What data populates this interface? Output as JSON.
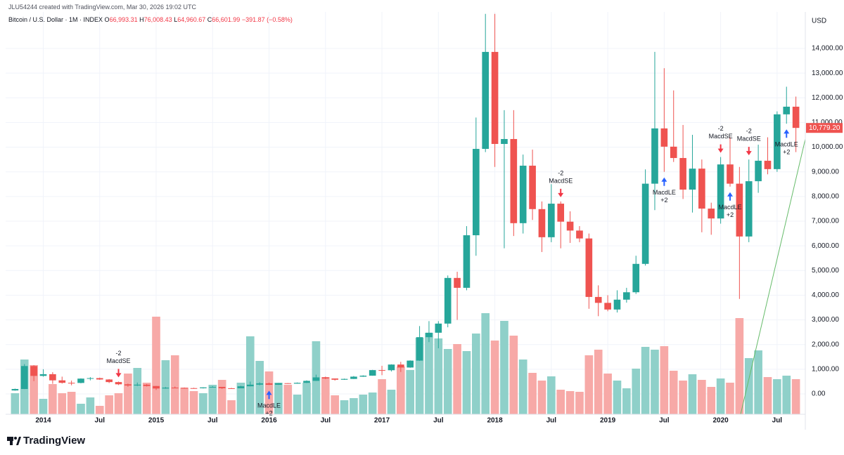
{
  "header": {
    "credit": "JLU54244 created with TradingView.com, Mar 30, 2026 19:02 UTC",
    "symbol": "Bitcoin / U.S. Dollar · 1M · INDEX",
    "ohlc": [
      {
        "label": "O",
        "value": "66,993.31"
      },
      {
        "label": "H",
        "value": "76,008.43"
      },
      {
        "label": "L",
        "value": "64,960.67"
      },
      {
        "label": "C",
        "value": "66,601.99"
      }
    ],
    "change": "−391.87 (−0.58%)",
    "logo": "TradingView"
  },
  "chart_data": {
    "type": "candlestick",
    "currency": "USD",
    "dates": [
      "2013-10",
      "2013-11",
      "2013-12",
      "2014-01",
      "2014-02",
      "2014-03",
      "2014-04",
      "2014-05",
      "2014-06",
      "2014-07",
      "2014-08",
      "2014-09",
      "2014-10",
      "2014-11",
      "2014-12",
      "2015-01",
      "2015-02",
      "2015-03",
      "2015-04",
      "2015-05",
      "2015-06",
      "2015-07",
      "2015-08",
      "2015-09",
      "2015-10",
      "2015-11",
      "2015-12",
      "2016-01",
      "2016-02",
      "2016-03",
      "2016-04",
      "2016-05",
      "2016-06",
      "2016-07",
      "2016-08",
      "2016-09",
      "2016-10",
      "2016-11",
      "2016-12",
      "2017-01",
      "2017-02",
      "2017-03",
      "2017-04",
      "2017-05",
      "2017-06",
      "2017-07",
      "2017-08",
      "2017-09",
      "2017-10",
      "2017-11",
      "2017-12",
      "2018-01",
      "2018-02",
      "2018-03",
      "2018-04",
      "2018-05",
      "2018-06",
      "2018-07",
      "2018-08",
      "2018-09",
      "2018-10",
      "2018-11",
      "2018-12",
      "2019-01",
      "2019-02",
      "2019-03",
      "2019-04",
      "2019-05",
      "2019-06",
      "2019-07",
      "2019-08",
      "2019-09",
      "2019-10",
      "2019-11",
      "2019-12",
      "2020-01",
      "2020-02",
      "2020-03",
      "2020-04",
      "2020-05",
      "2020-06",
      "2020-07",
      "2020-08",
      "2020-09"
    ],
    "open": [
      140,
      200,
      1130,
      730,
      800,
      550,
      450,
      445,
      620,
      640,
      585,
      480,
      390,
      340,
      375,
      320,
      220,
      255,
      245,
      235,
      230,
      265,
      285,
      230,
      228,
      310,
      375,
      430,
      370,
      435,
      415,
      450,
      530,
      670,
      625,
      575,
      608,
      700,
      740,
      965,
      960,
      1190,
      1070,
      1350,
      2300,
      2480,
      2850,
      4700,
      4300,
      6430,
      9930,
      13860,
      10130,
      10330,
      6920,
      9250,
      7490,
      6350,
      7710,
      6980,
      6620,
      6300,
      3930,
      3690,
      3420,
      3820,
      4120,
      5270,
      8520,
      10760,
      10020,
      9560,
      8280,
      9130,
      7510,
      7110,
      9300,
      8520,
      6380,
      8620,
      9450,
      9110,
      11330,
      11640
    ],
    "high": [
      215,
      1210,
      1165,
      1000,
      880,
      700,
      540,
      630,
      680,
      660,
      600,
      500,
      420,
      460,
      400,
      325,
      280,
      300,
      260,
      250,
      270,
      315,
      285,
      245,
      330,
      500,
      470,
      460,
      440,
      440,
      465,
      550,
      780,
      700,
      625,
      620,
      725,
      755,
      975,
      1140,
      1200,
      1300,
      1360,
      2750,
      2950,
      2950,
      4800,
      4950,
      6800,
      11200,
      15400,
      15400,
      11500,
      11500,
      9700,
      9900,
      7800,
      8500,
      7800,
      7400,
      6800,
      6500,
      4400,
      4000,
      4200,
      4300,
      5600,
      9100,
      13860,
      13200,
      12300,
      10900,
      10500,
      9500,
      7750,
      9600,
      10400,
      9200,
      9500,
      10100,
      10400,
      11450,
      12450,
      12050
    ],
    "low": [
      130,
      195,
      520,
      700,
      410,
      420,
      350,
      430,
      550,
      570,
      440,
      360,
      290,
      320,
      300,
      160,
      210,
      240,
      215,
      225,
      220,
      255,
      200,
      225,
      228,
      305,
      350,
      360,
      365,
      410,
      415,
      440,
      525,
      600,
      540,
      570,
      605,
      690,
      735,
      760,
      910,
      890,
      1060,
      1340,
      2100,
      1850,
      2700,
      3000,
      4200,
      5600,
      9800,
      9200,
      5900,
      6400,
      6500,
      7050,
      5750,
      6150,
      5900,
      6120,
      6150,
      3450,
      3150,
      3350,
      3300,
      3700,
      4050,
      5200,
      7450,
      9000,
      9400,
      7900,
      7350,
      6550,
      6450,
      6900,
      8400,
      3850,
      6150,
      8150,
      8900,
      9000,
      10950,
      9800
    ],
    "close": [
      200,
      1130,
      730,
      800,
      550,
      450,
      445,
      620,
      640,
      585,
      480,
      390,
      340,
      375,
      320,
      220,
      255,
      245,
      235,
      230,
      265,
      285,
      230,
      228,
      310,
      375,
      430,
      370,
      435,
      415,
      450,
      530,
      670,
      625,
      575,
      608,
      700,
      740,
      965,
      960,
      1190,
      1070,
      1350,
      2300,
      2480,
      2850,
      4700,
      4300,
      6430,
      9930,
      13860,
      10130,
      10330,
      6920,
      9250,
      7490,
      6350,
      7710,
      6980,
      6620,
      6300,
      3930,
      3690,
      3420,
      3820,
      4120,
      5270,
      8520,
      10760,
      10020,
      9560,
      8280,
      9130,
      7510,
      7110,
      9300,
      8520,
      6380,
      8620,
      9450,
      9110,
      11330,
      11640,
      10780
    ],
    "volume": [
      30,
      78,
      70,
      22,
      43,
      30,
      32,
      15,
      24,
      12,
      27,
      30,
      58,
      66,
      45,
      139,
      77,
      84,
      38,
      33,
      30,
      42,
      49,
      20,
      45,
      111,
      76,
      61,
      45,
      42,
      28,
      45,
      104,
      53,
      27,
      20,
      23,
      28,
      31,
      50,
      35,
      68,
      63,
      109,
      116,
      108,
      93,
      100,
      90,
      115,
      144,
      105,
      133,
      112,
      78,
      59,
      48,
      54,
      35,
      33,
      32,
      84,
      92,
      58,
      48,
      37,
      65,
      96,
      92,
      97,
      62,
      48,
      57,
      49,
      39,
      51,
      45,
      137,
      80,
      91,
      53,
      50,
      55,
      50
    ],
    "volume_lim": [
      0,
      573
    ],
    "up_color": "#26a69a",
    "down_color": "#ef5350",
    "volume_up_color": "#8fd0c9",
    "volume_down_color": "#f7a9a7",
    "xlim": [
      "2013-09",
      "2020-10"
    ],
    "xticks": [
      {
        "value": "2014-01",
        "label": "2014"
      },
      {
        "value": "2014-07",
        "label": "Jul"
      },
      {
        "value": "2015-01",
        "label": "2015"
      },
      {
        "value": "2015-07",
        "label": "Jul"
      },
      {
        "value": "2016-01",
        "label": "2016"
      },
      {
        "value": "2016-07",
        "label": "Jul"
      },
      {
        "value": "2017-01",
        "label": "2017"
      },
      {
        "value": "2017-07",
        "label": "Jul"
      },
      {
        "value": "2018-01",
        "label": "2018"
      },
      {
        "value": "2018-07",
        "label": "Jul"
      },
      {
        "value": "2019-01",
        "label": "2019"
      },
      {
        "value": "2019-07",
        "label": "Jul"
      },
      {
        "value": "2020-01",
        "label": "2020"
      },
      {
        "value": "2020-07",
        "label": "Jul"
      }
    ],
    "ylim": [
      -825,
      15480
    ],
    "yticks": [
      {
        "value": 0,
        "label": "0.00"
      },
      {
        "value": 1000,
        "label": "1,000.00"
      },
      {
        "value": 2000,
        "label": "2,000.00"
      },
      {
        "value": 3000,
        "label": "3,000.00"
      },
      {
        "value": 4000,
        "label": "4,000.00"
      },
      {
        "value": 5000,
        "label": "5,000.00"
      },
      {
        "value": 6000,
        "label": "6,000.00"
      },
      {
        "value": 7000,
        "label": "7,000.00"
      },
      {
        "value": 8000,
        "label": "8,000.00"
      },
      {
        "value": 9000,
        "label": "9,000.00"
      },
      {
        "value": 10000,
        "label": "10,000.00"
      },
      {
        "value": 11000,
        "label": "11,000.00"
      },
      {
        "value": 12000,
        "label": "12,000.00"
      },
      {
        "value": 13000,
        "label": "13,000.00"
      },
      {
        "value": 14000,
        "label": "14,000.00"
      }
    ],
    "grid": true,
    "last_price": {
      "value": 10779.2,
      "label": "10,779.20"
    },
    "signals": [
      {
        "date": "2014-09",
        "name": "MacdSE",
        "qty": "-2",
        "side": "short"
      },
      {
        "date": "2016-01",
        "name": "MacdLE",
        "qty": "+2",
        "side": "long"
      },
      {
        "date": "2018-08",
        "name": "MacdSE",
        "qty": "-2",
        "side": "short"
      },
      {
        "date": "2019-07",
        "name": "MacdLE",
        "qty": "+2",
        "side": "long"
      },
      {
        "date": "2020-01",
        "name": "MacdSE",
        "qty": "-2",
        "side": "short"
      },
      {
        "date": "2020-02",
        "name": "MacdLE",
        "qty": "+2",
        "side": "long"
      },
      {
        "date": "2020-04",
        "name": "MacdSE",
        "qty": "-2",
        "side": "short"
      },
      {
        "date": "2020-08",
        "name": "MacdLE",
        "qty": "+2",
        "side": "long"
      }
    ],
    "short_color": "#f23645",
    "long_color": "#2962ff"
  }
}
